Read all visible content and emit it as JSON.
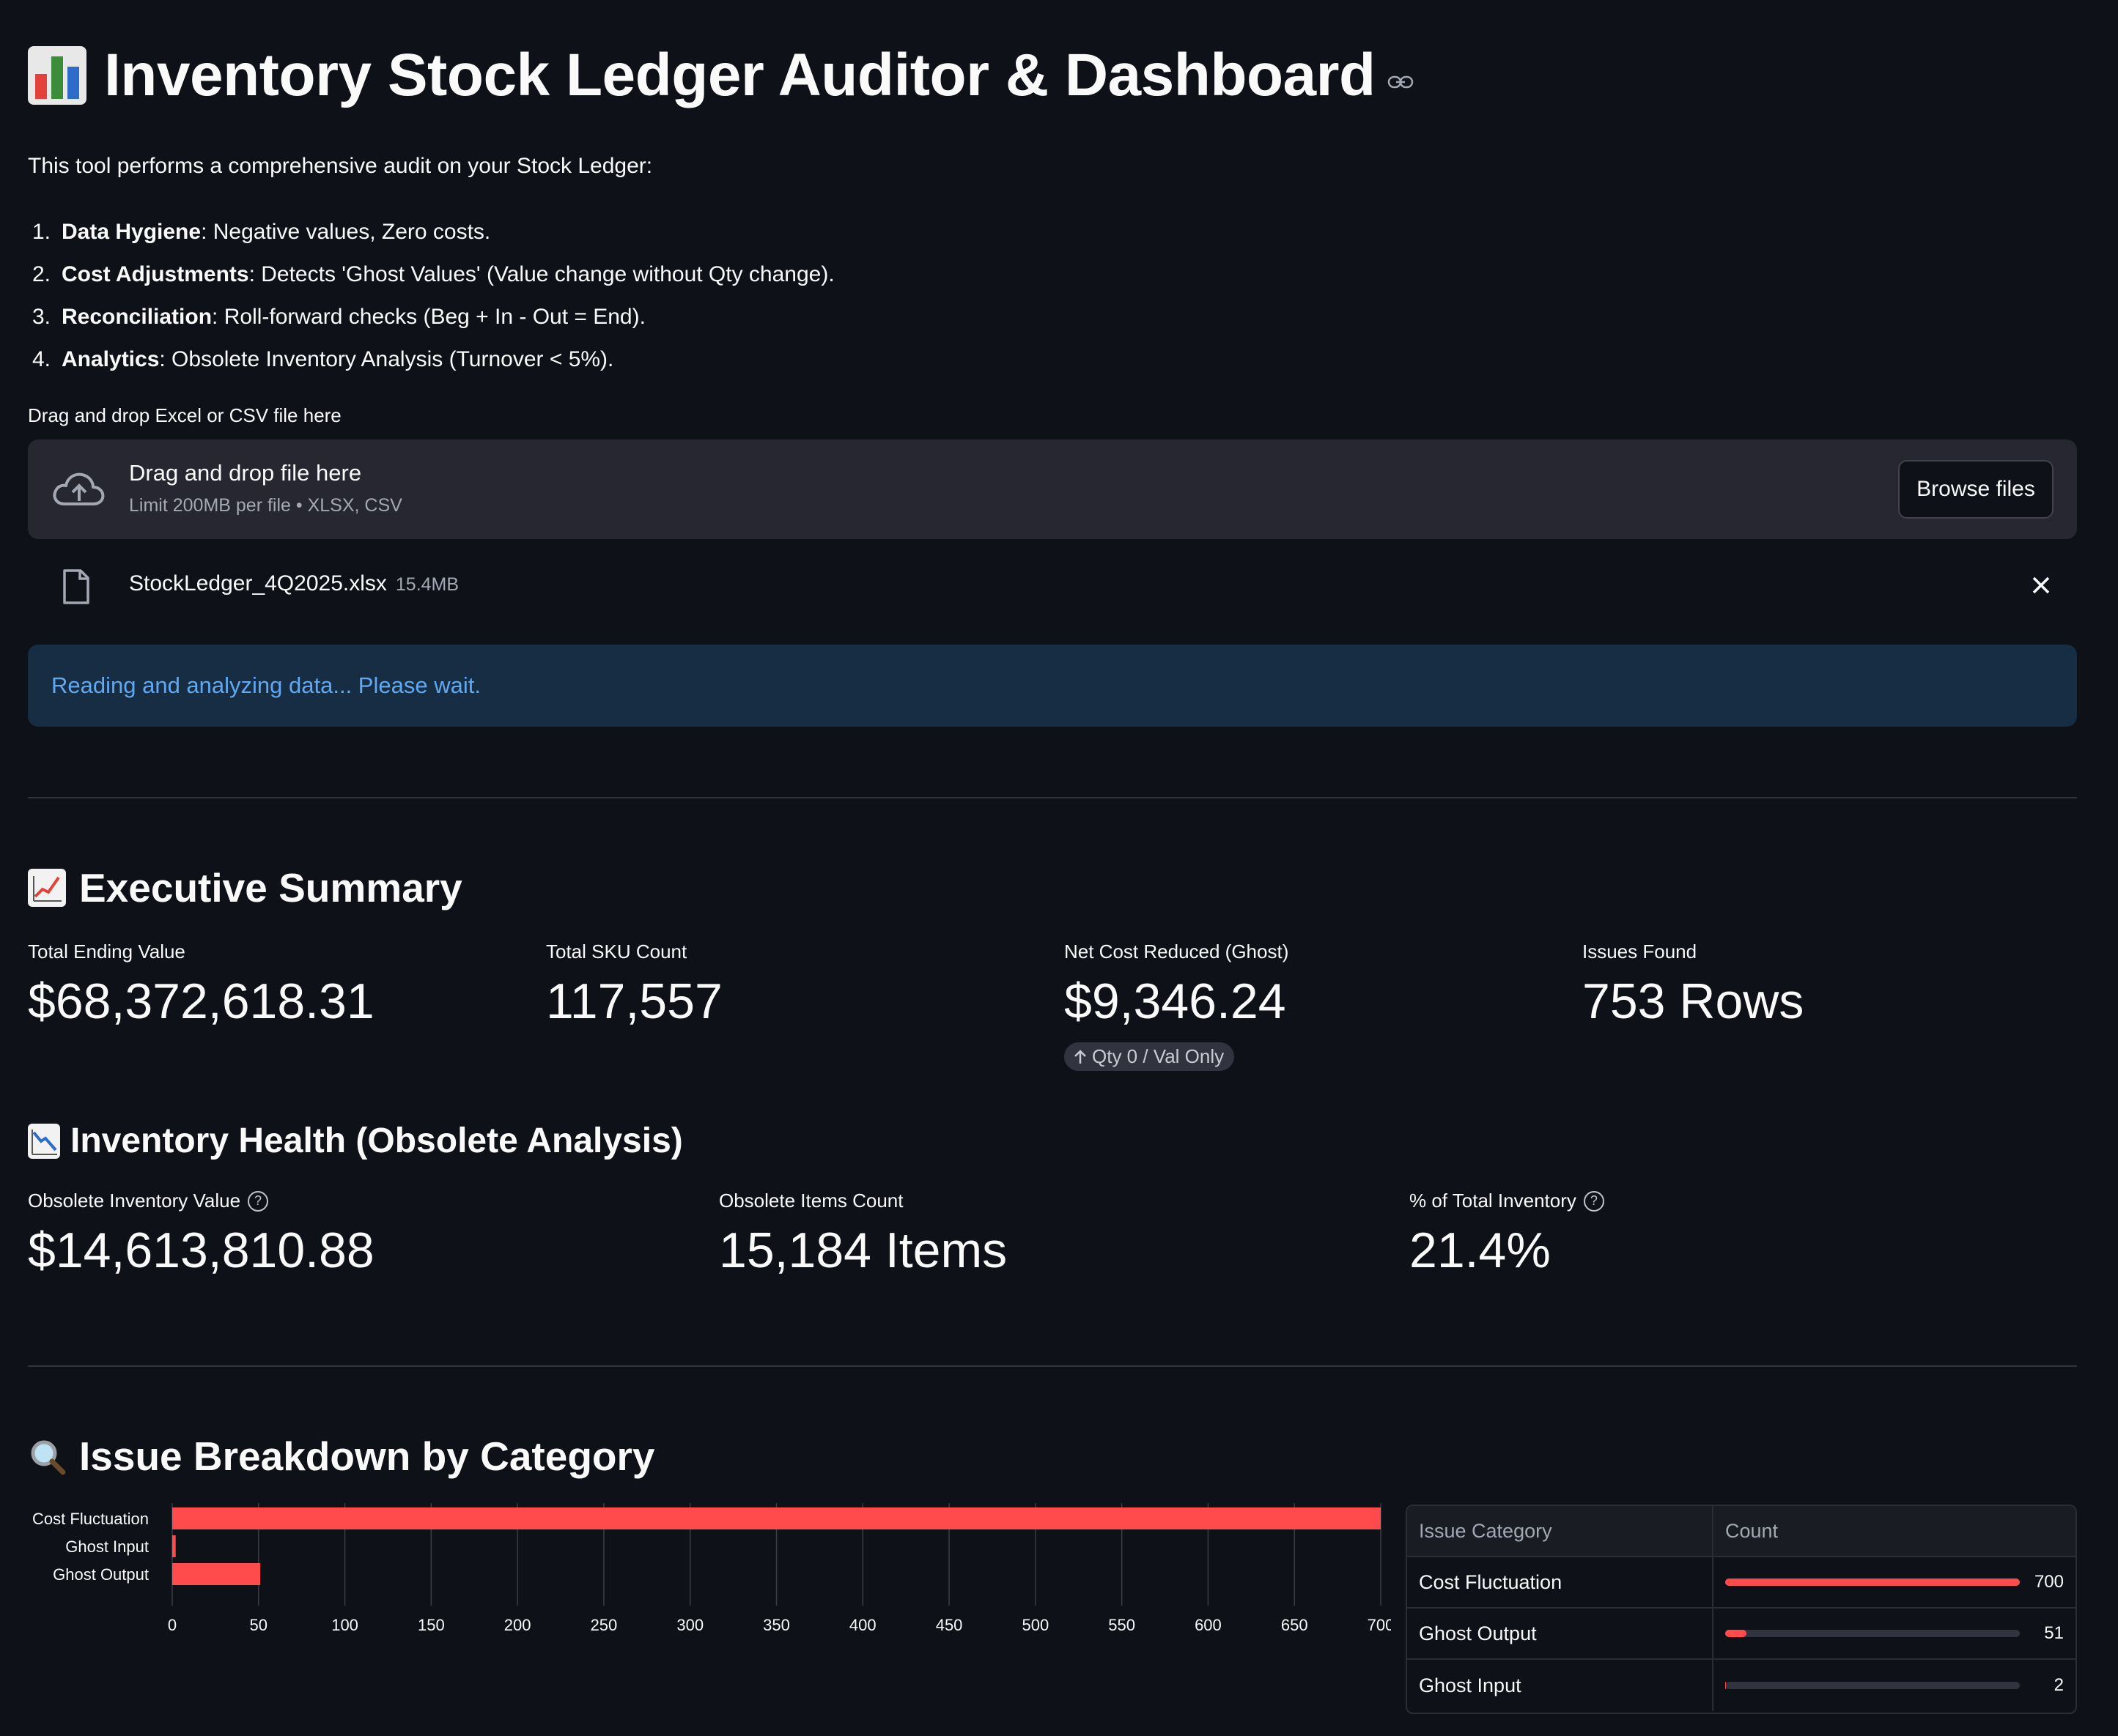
{
  "header": {
    "title": "Inventory Stock Ledger Auditor & Dashboard",
    "intro": "This tool performs a comprehensive audit on your Stock Ledger:"
  },
  "steps": [
    {
      "num": "1.",
      "bold": "Data Hygiene",
      "text": ": Negative values, Zero costs."
    },
    {
      "num": "2.",
      "bold": "Cost Adjustments",
      "text": ": Detects 'Ghost Values' (Value change without Qty change)."
    },
    {
      "num": "3.",
      "bold": "Reconciliation",
      "text": ": Roll-forward checks (Beg + In - Out = End)."
    },
    {
      "num": "4.",
      "bold": "Analytics",
      "text": ": Obsolete Inventory Analysis (Turnover < 5%)."
    }
  ],
  "uploader": {
    "label": "Drag and drop Excel or CSV file here",
    "drop_title": "Drag and drop file here",
    "drop_sub": "Limit 200MB per file • XLSX, CSV",
    "browse_label": "Browse files",
    "file_name": "StockLedger_4Q2025.xlsx",
    "file_size": "15.4MB"
  },
  "status": {
    "info": "Reading and analyzing data... Please wait."
  },
  "executive": {
    "heading": "Executive Summary",
    "metrics": [
      {
        "label": "Total Ending Value",
        "value": "$68,372,618.31"
      },
      {
        "label": "Total SKU Count",
        "value": "117,557"
      },
      {
        "label": "Net Cost Reduced (Ghost)",
        "value": "$9,346.24",
        "delta": "Qty 0 / Val Only"
      },
      {
        "label": "Issues Found",
        "value": "753 Rows"
      }
    ]
  },
  "health": {
    "heading": "Inventory Health (Obsolete Analysis)",
    "metrics": [
      {
        "label": "Obsolete Inventory Value",
        "value": "$14,613,810.88"
      },
      {
        "label": "Obsolete Items Count",
        "value": "15,184 Items"
      },
      {
        "label": "% of Total Inventory",
        "value": "21.4%"
      }
    ]
  },
  "breakdown": {
    "heading": "Issue Breakdown by Category",
    "table": {
      "headers": [
        "Issue Category",
        "Count"
      ],
      "rows": [
        {
          "category": "Cost Fluctuation",
          "count": 700
        },
        {
          "category": "Ghost Output",
          "count": 51
        },
        {
          "category": "Ghost Input",
          "count": 2
        }
      ],
      "max": 700
    }
  },
  "chart_data": {
    "type": "bar",
    "orientation": "horizontal",
    "categories": [
      "Cost Fluctuation",
      "Ghost Input",
      "Ghost Output"
    ],
    "values": [
      700,
      2,
      51
    ],
    "xlim": [
      0,
      700
    ],
    "xticks": [
      0,
      50,
      100,
      150,
      200,
      250,
      300,
      350,
      400,
      450,
      500,
      550,
      600,
      650,
      700
    ],
    "grid": true,
    "color": "#ff4b4b"
  },
  "colors": {
    "background": "#0e1117",
    "accent": "#ff4b4b",
    "info_bg": "#172d43",
    "info_text": "#61a8f0"
  }
}
